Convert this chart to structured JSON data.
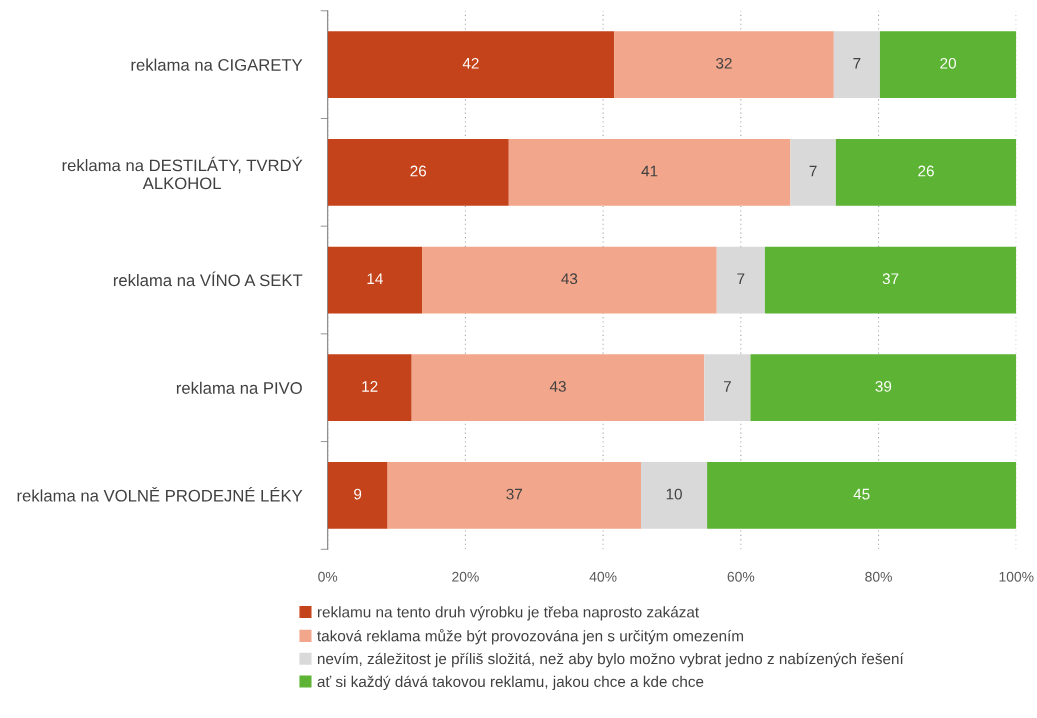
{
  "chart_data": {
    "type": "bar",
    "orientation": "horizontal",
    "stacked": true,
    "categories": [
      "reklama na CIGARETY",
      "reklama na DESTILÁTY, TVRDÝ\nALKOHOL",
      "reklama na VÍNO A SEKT",
      "reklama na PIVO",
      "reklama na VOLNĚ PRODEJNÉ LÉKY"
    ],
    "series": [
      {
        "name": "reklamu na tento druh výrobku je třeba naprosto zakázat",
        "color": "#c5431a",
        "values": [
          41.6,
          26.3,
          13.7,
          12.2,
          8.7
        ],
        "value_labels": [
          "42",
          "26",
          "14",
          "12",
          "9"
        ]
      },
      {
        "name": "taková reklama může být provozována jen s určitým omezením",
        "color": "#f2a68b",
        "values": [
          31.9,
          40.9,
          42.8,
          42.5,
          36.8
        ],
        "value_labels": [
          "32",
          "41",
          "43",
          "43",
          "37"
        ]
      },
      {
        "name": "nevím, záležitost je příliš složitá, než aby bylo možno vybrat jedno z nabízených řešení",
        "color": "#d9d9d9",
        "values": [
          6.7,
          6.6,
          7.0,
          6.7,
          9.6
        ],
        "value_labels": [
          "7",
          "7",
          "7",
          "7",
          "10"
        ]
      },
      {
        "name": "ať si každý dává takovou reklamu, jakou chce a kde chce",
        "color": "#5db334",
        "values": [
          19.8,
          26.2,
          36.5,
          38.6,
          44.9
        ],
        "value_labels": [
          "20",
          "26",
          "37",
          "39",
          "45"
        ]
      }
    ],
    "xlim": [
      0,
      100
    ],
    "xticks": [
      {
        "value": 0,
        "label": "0%"
      },
      {
        "value": 20,
        "label": "20%"
      },
      {
        "value": 40,
        "label": "40%"
      },
      {
        "value": 60,
        "label": "60%"
      },
      {
        "value": 80,
        "label": "80%"
      },
      {
        "value": 100,
        "label": "100%"
      }
    ],
    "grid": "x",
    "legend": "bottom"
  }
}
